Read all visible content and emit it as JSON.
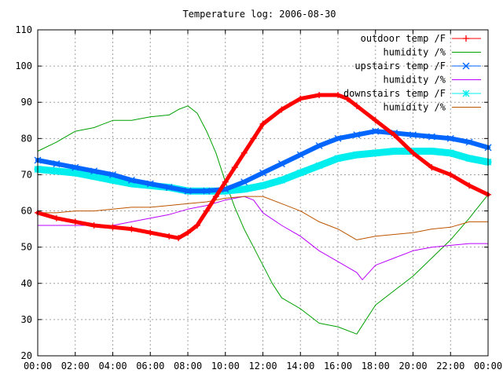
{
  "chart_data": {
    "type": "line",
    "title": "Temperature log: 2006-08-30",
    "xlabel": "",
    "ylabel": "",
    "xlim": [
      0,
      24
    ],
    "ylim": [
      20,
      110
    ],
    "grid": true,
    "legend_position": "top-right",
    "x_ticks": [
      {
        "v": 0,
        "label": "00:00"
      },
      {
        "v": 2,
        "label": "02:00"
      },
      {
        "v": 4,
        "label": "04:00"
      },
      {
        "v": 6,
        "label": "06:00"
      },
      {
        "v": 8,
        "label": "08:00"
      },
      {
        "v": 10,
        "label": "10:00"
      },
      {
        "v": 12,
        "label": "12:00"
      },
      {
        "v": 14,
        "label": "14:00"
      },
      {
        "v": 16,
        "label": "16:00"
      },
      {
        "v": 18,
        "label": "18:00"
      },
      {
        "v": 20,
        "label": "20:00"
      },
      {
        "v": 22,
        "label": "22:00"
      },
      {
        "v": 24,
        "label": "00:00"
      }
    ],
    "y_ticks": [
      {
        "v": 20,
        "label": "20"
      },
      {
        "v": 30,
        "label": "30"
      },
      {
        "v": 40,
        "label": "40"
      },
      {
        "v": 50,
        "label": "50"
      },
      {
        "v": 60,
        "label": "60"
      },
      {
        "v": 70,
        "label": "70"
      },
      {
        "v": 80,
        "label": "80"
      },
      {
        "v": 90,
        "label": "90"
      },
      {
        "v": 100,
        "label": "100"
      },
      {
        "v": 110,
        "label": "110"
      }
    ],
    "series": [
      {
        "name": "outdoor temp /F",
        "color": "#ff0000",
        "marker": "plus",
        "width": 5,
        "x": [
          0,
          1,
          2,
          3,
          4,
          5,
          6,
          7,
          7.5,
          8,
          8.5,
          9,
          9.5,
          10,
          10.5,
          11,
          11.5,
          12,
          13,
          14,
          15,
          16,
          16.5,
          17,
          18,
          19,
          20,
          21,
          22,
          23,
          24
        ],
        "y": [
          59.5,
          58,
          57,
          56,
          55.5,
          55,
          54,
          53,
          52.5,
          54,
          56,
          60,
          64,
          68,
          72,
          76,
          80,
          84,
          88,
          91,
          92,
          92,
          91,
          89,
          85,
          81,
          76,
          72,
          70,
          67,
          64.5
        ]
      },
      {
        "name": "humidity /%",
        "color": "#00a000",
        "marker": "none",
        "width": 1,
        "x": [
          0,
          1,
          2,
          3,
          4,
          5,
          6,
          7,
          7.5,
          8,
          8.5,
          9,
          9.5,
          10,
          10.5,
          11,
          11.5,
          12,
          12.5,
          13,
          14,
          15,
          16,
          17,
          18,
          19,
          20,
          21,
          22,
          23,
          24
        ],
        "y": [
          76.5,
          79,
          82,
          83,
          85,
          85,
          86,
          86.5,
          88,
          89,
          87,
          82,
          76,
          68,
          61,
          55,
          50,
          45,
          40,
          36,
          33,
          29,
          28,
          26,
          34,
          38,
          42,
          47,
          52,
          58,
          64.5
        ]
      },
      {
        "name": "upstairs temp /F",
        "color": "#0066ff",
        "marker": "cross",
        "width": 6,
        "x": [
          0,
          1,
          2,
          3,
          4,
          5,
          6,
          7,
          8,
          9,
          10,
          11,
          12,
          13,
          14,
          15,
          16,
          17,
          18,
          19,
          20,
          21,
          22,
          23,
          24
        ],
        "y": [
          74,
          73,
          72,
          71,
          70,
          68.5,
          67.5,
          66.5,
          65.5,
          65.5,
          66,
          68,
          70.5,
          73,
          75.5,
          78,
          80,
          81,
          82,
          81.5,
          81,
          80.5,
          80,
          79,
          77.5
        ]
      },
      {
        "name": "humidity /%",
        "color": "#bb00ff",
        "marker": "none",
        "width": 1,
        "x": [
          0,
          1,
          2,
          3,
          4,
          5,
          6,
          7,
          8,
          9,
          10,
          11,
          11.5,
          12,
          13,
          14,
          15,
          16,
          17,
          17.3,
          18,
          19,
          20,
          21,
          22,
          23,
          24
        ],
        "y": [
          56,
          56,
          56,
          56,
          56,
          57,
          58,
          59,
          60.5,
          61.5,
          63,
          64,
          63,
          59.5,
          56,
          53,
          49,
          46,
          43,
          41,
          45,
          47,
          49,
          50,
          50.5,
          51,
          51
        ]
      },
      {
        "name": "downstairs temp /F",
        "color": "#00eeee",
        "marker": "star",
        "width": 9,
        "x": [
          0,
          1,
          2,
          3,
          4,
          5,
          6,
          7,
          8,
          9,
          10,
          11,
          12,
          13,
          14,
          15,
          16,
          17,
          18,
          19,
          20,
          21,
          22,
          23,
          24
        ],
        "y": [
          71.5,
          71,
          70.5,
          69.5,
          68.5,
          67.5,
          67,
          66.5,
          65.5,
          65.5,
          65.5,
          66,
          67,
          68.5,
          70.5,
          72.5,
          74.5,
          75.5,
          76,
          76.5,
          76.5,
          76.5,
          76,
          74.5,
          73.5
        ]
      },
      {
        "name": "humidity /%",
        "color": "#bb5500",
        "marker": "none",
        "width": 1,
        "x": [
          0,
          1,
          2,
          3,
          4,
          5,
          6,
          7,
          8,
          9,
          10,
          11,
          12,
          13,
          14,
          15,
          16,
          17,
          18,
          19,
          20,
          21,
          22,
          23,
          24
        ],
        "y": [
          59.5,
          59.5,
          60,
          60,
          60.5,
          61,
          61,
          61.5,
          62,
          62.5,
          63.5,
          64,
          64,
          62,
          60,
          57,
          55,
          52,
          53,
          53.5,
          54,
          55,
          55.5,
          57,
          57
        ]
      }
    ]
  }
}
